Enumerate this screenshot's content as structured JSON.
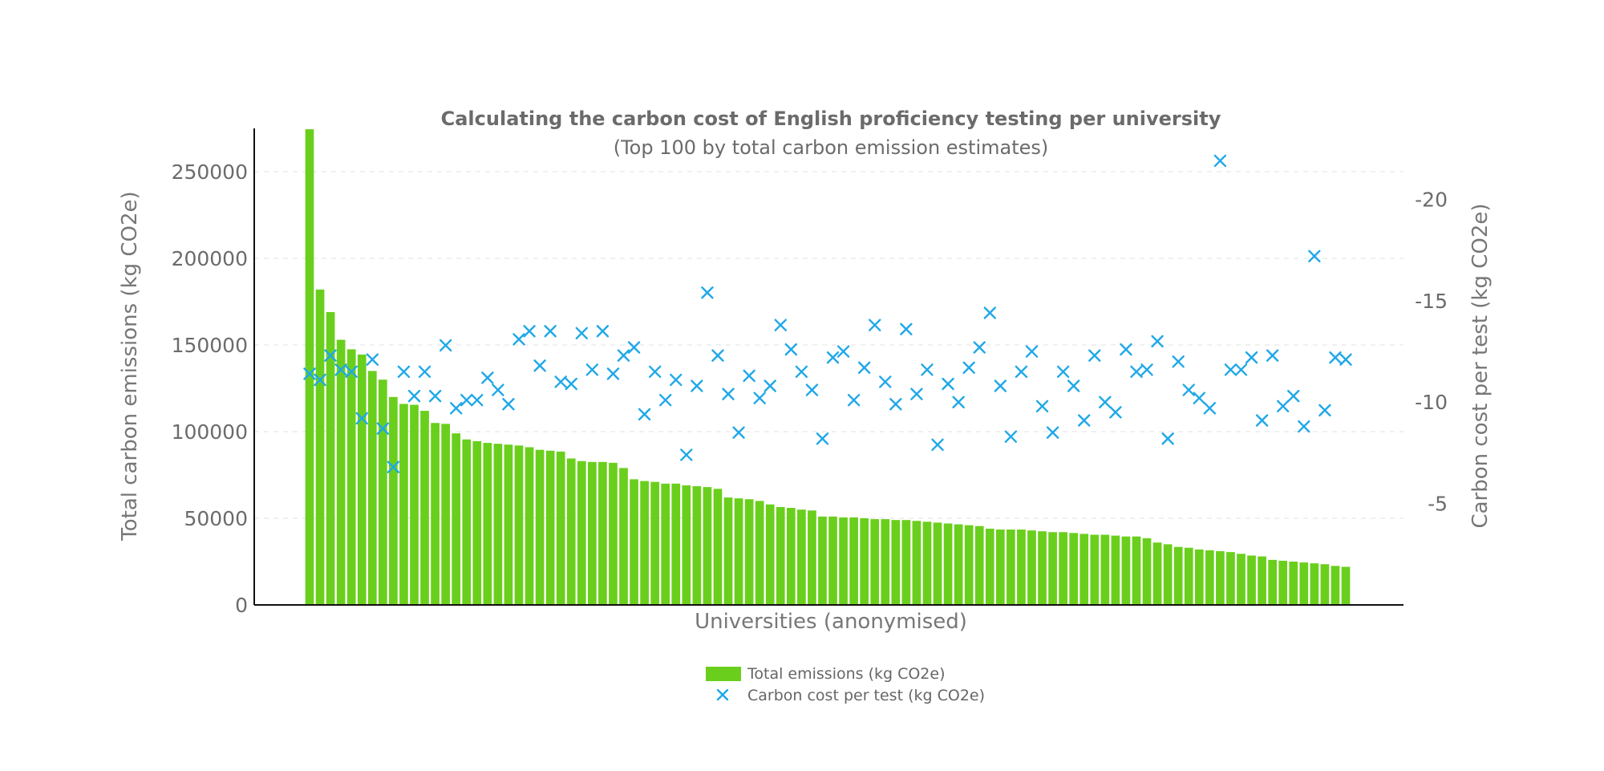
{
  "chart_data": {
    "type": "bar+scatter",
    "title": "Calculating the carbon cost of English proficiency testing per university",
    "subtitle": "(Top 100 by total carbon emission estimates)",
    "xlabel": "Universities (anonymised)",
    "ylabel": "Total carbon emissions (kg CO2e)",
    "y2label": "Carbon cost per test (kg CO2e)",
    "ylim": [
      0,
      275000
    ],
    "yticks": [
      "0",
      "50000",
      "100000",
      "150000",
      "200000",
      "250000"
    ],
    "y2lim": [
      0,
      -23.5
    ],
    "y2ticks": [
      "-5",
      "-10",
      "-15",
      "-20"
    ],
    "grid": true,
    "legend_position": "bottom-center",
    "colors": {
      "bars": "#6acf1c",
      "markers": "#1fa8e8",
      "text": "#6b6b6b"
    },
    "series": [
      {
        "name": "Total emissions (kg CO2e)",
        "kind": "bar",
        "values": [
          274500,
          182000,
          169000,
          153000,
          147500,
          144500,
          135000,
          130000,
          120000,
          116000,
          115500,
          112000,
          105000,
          104500,
          99000,
          95500,
          94500,
          93500,
          93000,
          92500,
          92000,
          91000,
          89500,
          89000,
          88500,
          84500,
          83000,
          82500,
          82500,
          82000,
          79000,
          72500,
          71500,
          71000,
          70000,
          70000,
          69000,
          68500,
          68000,
          67000,
          62000,
          61500,
          61000,
          60000,
          58000,
          56500,
          56000,
          55000,
          54500,
          51000,
          51000,
          50500,
          50500,
          50000,
          49500,
          49500,
          49000,
          49000,
          48500,
          48000,
          47500,
          47000,
          46500,
          46000,
          45500,
          44000,
          43500,
          43500,
          43500,
          43000,
          42500,
          42000,
          42000,
          41500,
          41000,
          40500,
          40500,
          40000,
          39500,
          39500,
          38500,
          36000,
          35000,
          33500,
          33000,
          32000,
          31500,
          31000,
          30500,
          29500,
          28500,
          28000,
          26000,
          25500,
          25000,
          24500,
          24000,
          23500,
          22500,
          22000
        ]
      },
      {
        "name": "Carbon cost per test (kg CO2e)",
        "kind": "scatter",
        "values": [
          -11.4,
          -11.1,
          -12.3,
          -11.6,
          -11.5,
          -9.2,
          -12.1,
          -8.7,
          -6.8,
          -11.5,
          -10.3,
          -11.5,
          -10.3,
          -12.8,
          -9.7,
          -10.1,
          -10.1,
          -11.2,
          -10.6,
          -9.9,
          -13.1,
          -13.5,
          -11.8,
          -13.5,
          -11.0,
          -10.9,
          -13.4,
          -11.6,
          -13.5,
          -11.4,
          -12.3,
          -12.7,
          -9.4,
          -11.5,
          -10.1,
          -11.1,
          -7.4,
          -10.8,
          -15.4,
          -12.3,
          -10.4,
          -8.5,
          -11.3,
          -10.2,
          -10.8,
          -13.8,
          -12.6,
          -11.5,
          -10.6,
          -8.2,
          -12.2,
          -12.5,
          -10.1,
          -11.7,
          -13.8,
          -11.0,
          -9.9,
          -13.6,
          -10.4,
          -11.6,
          -7.9,
          -10.9,
          -10.0,
          -11.7,
          -12.7,
          -14.4,
          -10.8,
          -8.3,
          -11.5,
          -12.5,
          -9.8,
          -8.5,
          -11.5,
          -10.8,
          -9.1,
          -12.3,
          -10.0,
          -9.5,
          -12.6,
          -11.5,
          -11.6,
          -13.0,
          -8.2,
          -12.0,
          -10.6,
          -10.2,
          -9.7,
          -21.9,
          -11.6,
          -11.6,
          -12.2,
          -9.1,
          -12.3,
          -9.8,
          -10.3,
          -8.8,
          -17.2,
          -9.6,
          -12.2,
          -12.1
        ]
      }
    ]
  }
}
